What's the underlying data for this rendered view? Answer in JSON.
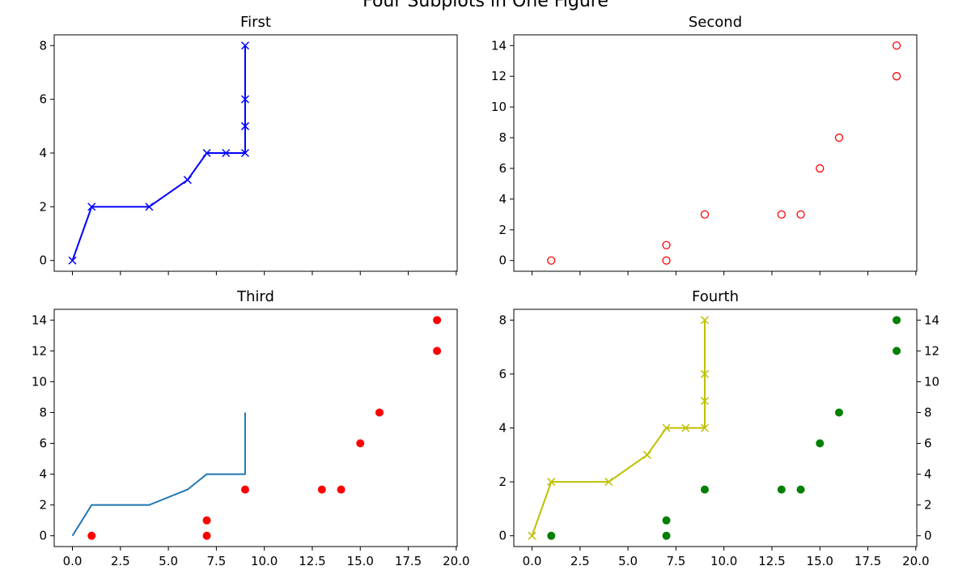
{
  "figure_title": "Four Subplots in One Figure",
  "chart_data": [
    {
      "type": "line",
      "title": "First",
      "xlabel": "",
      "ylabel": "",
      "xlim": [
        -0.95,
        20.05
      ],
      "ylim": [
        -0.4,
        8.4
      ],
      "xticks": [
        0,
        2.5,
        5,
        7.5,
        10,
        12.5,
        15,
        17.5,
        20
      ],
      "yticks": [
        0,
        2,
        4,
        6,
        8
      ],
      "show_x_tick_labels": false,
      "series": [
        {
          "x": [
            0,
            1,
            4,
            6,
            7,
            8,
            9,
            9,
            9,
            9
          ],
          "y": [
            0,
            2,
            2,
            3,
            4,
            4,
            4,
            5,
            6,
            8
          ],
          "color": "#0000ff",
          "marker": "x",
          "line": true
        }
      ]
    },
    {
      "type": "scatter",
      "title": "Second",
      "xlabel": "",
      "ylabel": "",
      "xlim": [
        -0.95,
        20.05
      ],
      "ylim": [
        -0.7,
        14.7
      ],
      "xticks": [
        0,
        2.5,
        5,
        7.5,
        10,
        12.5,
        15,
        17.5,
        20
      ],
      "yticks": [
        0,
        2,
        4,
        6,
        8,
        10,
        12,
        14
      ],
      "show_x_tick_labels": false,
      "series": [
        {
          "x": [
            1,
            7,
            7,
            9,
            13,
            14,
            15,
            16,
            19,
            19
          ],
          "y": [
            0,
            0,
            1,
            3,
            3,
            3,
            6,
            8,
            12,
            14
          ],
          "color": "#ff0000",
          "marker": "open-circle",
          "line": false
        }
      ]
    },
    {
      "type": "line",
      "title": "Third",
      "xlabel": "",
      "ylabel": "",
      "xlim": [
        -0.95,
        20.05
      ],
      "ylim": [
        -0.7,
        14.7
      ],
      "xticks": [
        0,
        2.5,
        5,
        7.5,
        10,
        12.5,
        15,
        17.5,
        20
      ],
      "xtick_labels": [
        "0.0",
        "2.5",
        "5.0",
        "7.5",
        "10.0",
        "12.5",
        "15.0",
        "17.5",
        "20.0"
      ],
      "yticks": [
        0,
        2,
        4,
        6,
        8,
        10,
        12,
        14
      ],
      "show_x_tick_labels": true,
      "series": [
        {
          "x": [
            0,
            1,
            4,
            6,
            7,
            8,
            9,
            9,
            9,
            9
          ],
          "y": [
            0,
            2,
            2,
            3,
            4,
            4,
            4,
            5,
            6,
            8
          ],
          "color": "#1f77b4",
          "marker": "none",
          "line": true
        },
        {
          "x": [
            1,
            7,
            7,
            9,
            13,
            14,
            15,
            16,
            19,
            19
          ],
          "y": [
            0,
            0,
            1,
            3,
            3,
            3,
            6,
            8,
            12,
            14
          ],
          "color": "#ff0000",
          "marker": "filled-circle",
          "line": false
        }
      ]
    },
    {
      "type": "line",
      "title": "Fourth",
      "xlabel": "",
      "ylabel": "",
      "xlim": [
        -0.95,
        20.05
      ],
      "ylim": [
        -0.4,
        8.4
      ],
      "y2lim": [
        -0.7,
        14.7
      ],
      "xticks": [
        0,
        2.5,
        5,
        7.5,
        10,
        12.5,
        15,
        17.5,
        20
      ],
      "xtick_labels": [
        "0.0",
        "2.5",
        "5.0",
        "7.5",
        "10.0",
        "12.5",
        "15.0",
        "17.5",
        "20.0"
      ],
      "yticks": [
        0,
        2,
        4,
        6,
        8
      ],
      "y2ticks": [
        0,
        2,
        4,
        6,
        8,
        10,
        12,
        14
      ],
      "show_x_tick_labels": true,
      "series": [
        {
          "x": [
            0,
            1,
            4,
            6,
            7,
            8,
            9,
            9,
            9,
            9
          ],
          "y": [
            0,
            2,
            2,
            3,
            4,
            4,
            4,
            5,
            6,
            8
          ],
          "color": "#bfbf00",
          "marker": "x",
          "line": true,
          "axis": "left"
        },
        {
          "x": [
            1,
            7,
            7,
            9,
            13,
            14,
            15,
            16,
            19,
            19
          ],
          "y": [
            0,
            0,
            1,
            3,
            3,
            3,
            6,
            8,
            12,
            14
          ],
          "color": "#008000",
          "marker": "filled-circle",
          "line": false,
          "axis": "right"
        }
      ]
    }
  ]
}
